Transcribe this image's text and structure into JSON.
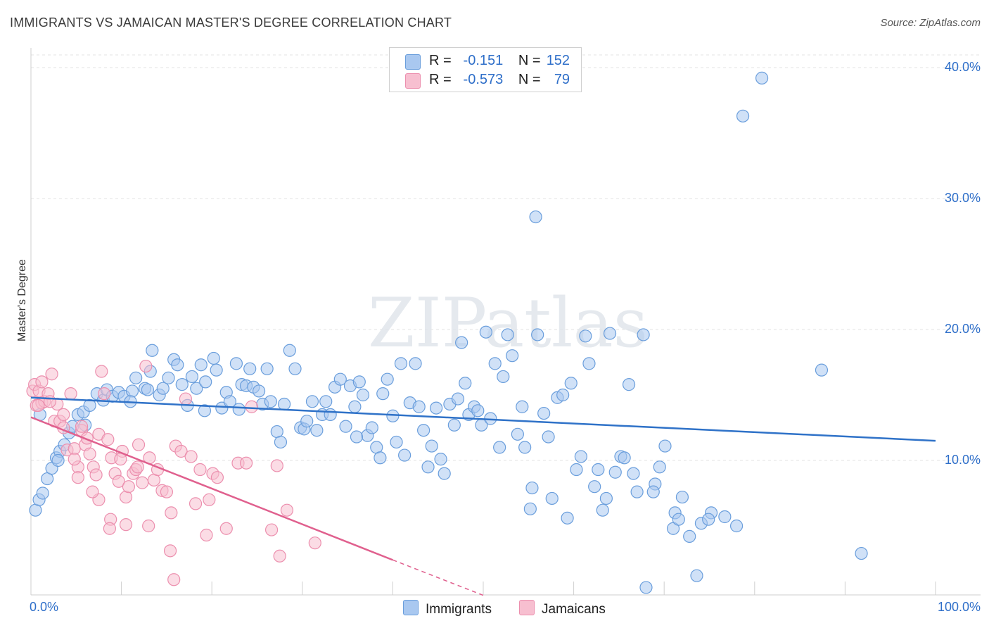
{
  "title": "IMMIGRANTS VS JAMAICAN MASTER'S DEGREE CORRELATION CHART",
  "source": "Source: ZipAtlas.com",
  "watermark": "ZIPatlas",
  "colors": {
    "immigrants_fill": "#a9c8f0",
    "immigrants_stroke": "#6a9edc",
    "immigrants_line": "#2f72c8",
    "jamaicans_fill": "#f7bfd0",
    "jamaicans_stroke": "#ec8fae",
    "jamaicans_line": "#e0608e",
    "accent_text": "#2f6fc9"
  },
  "legend": {
    "rows": [
      {
        "r_label": "R =",
        "r_value": "-0.151",
        "n_label": "N =",
        "n_value": "152"
      },
      {
        "r_label": "R =",
        "r_value": "-0.573",
        "n_label": "N =",
        "n_value": "79"
      }
    ]
  },
  "bottom_legend": {
    "immigrants": "Immigrants",
    "jamaicans": "Jamaicans"
  },
  "chart_data": {
    "type": "scatter",
    "title": "IMMIGRANTS VS JAMAICAN MASTER'S DEGREE CORRELATION CHART",
    "xlabel": "",
    "ylabel": "Master's Degree",
    "xlim": [
      0,
      100
    ],
    "ylim": [
      0,
      40
    ],
    "x_tick_labels": [
      "0.0%",
      "100.0%"
    ],
    "y_ticks": [
      10,
      20,
      30,
      40
    ],
    "y_tick_labels": [
      "10.0%",
      "20.0%",
      "30.0%",
      "40.0%"
    ],
    "grid": true,
    "legend_position": "top-center",
    "series": [
      {
        "name": "Immigrants",
        "r": -0.151,
        "n": 152,
        "trend": {
          "x": [
            0,
            100
          ],
          "y": [
            14.8,
            11.5
          ]
        },
        "points": [
          [
            0.5,
            6.2
          ],
          [
            0.9,
            7.0
          ],
          [
            1.3,
            7.5
          ],
          [
            1.8,
            8.6
          ],
          [
            2.3,
            9.4
          ],
          [
            2.8,
            10.2
          ],
          [
            3.2,
            10.7
          ],
          [
            3.7,
            11.2
          ],
          [
            4.2,
            12.1
          ],
          [
            4.6,
            12.6
          ],
          [
            5.2,
            13.5
          ],
          [
            5.8,
            13.7
          ],
          [
            6.5,
            14.2
          ],
          [
            7.3,
            15.1
          ],
          [
            8.0,
            14.6
          ],
          [
            8.4,
            15.4
          ],
          [
            9.0,
            14.9
          ],
          [
            9.7,
            15.2
          ],
          [
            10.3,
            14.9
          ],
          [
            11.2,
            15.3
          ],
          [
            11.6,
            16.3
          ],
          [
            12.6,
            15.5
          ],
          [
            13.2,
            16.8
          ],
          [
            12.9,
            15.4
          ],
          [
            13.4,
            18.4
          ],
          [
            14.2,
            15.0
          ],
          [
            14.6,
            15.5
          ],
          [
            15.2,
            16.3
          ],
          [
            15.8,
            17.7
          ],
          [
            16.2,
            17.3
          ],
          [
            16.7,
            15.8
          ],
          [
            17.3,
            14.2
          ],
          [
            17.8,
            16.4
          ],
          [
            18.3,
            15.5
          ],
          [
            18.8,
            17.3
          ],
          [
            19.3,
            16.0
          ],
          [
            19.2,
            13.8
          ],
          [
            20.2,
            17.8
          ],
          [
            20.5,
            16.9
          ],
          [
            21.1,
            14.0
          ],
          [
            21.6,
            15.2
          ],
          [
            22.0,
            14.5
          ],
          [
            22.7,
            17.4
          ],
          [
            23.3,
            15.8
          ],
          [
            23.8,
            15.7
          ],
          [
            24.2,
            17.0
          ],
          [
            24.6,
            15.6
          ],
          [
            25.2,
            15.3
          ],
          [
            25.6,
            14.3
          ],
          [
            26.1,
            17.0
          ],
          [
            26.5,
            14.5
          ],
          [
            27.2,
            12.2
          ],
          [
            27.6,
            11.4
          ],
          [
            28.0,
            14.3
          ],
          [
            28.6,
            18.4
          ],
          [
            29.2,
            17.0
          ],
          [
            29.8,
            12.5
          ],
          [
            30.2,
            12.4
          ],
          [
            30.5,
            13.0
          ],
          [
            31.1,
            14.5
          ],
          [
            31.6,
            12.3
          ],
          [
            32.2,
            13.5
          ],
          [
            32.6,
            14.5
          ],
          [
            33.1,
            13.5
          ],
          [
            33.6,
            15.6
          ],
          [
            34.2,
            16.2
          ],
          [
            34.8,
            12.6
          ],
          [
            35.3,
            15.7
          ],
          [
            35.8,
            14.1
          ],
          [
            36.3,
            16.0
          ],
          [
            36.7,
            15.0
          ],
          [
            37.2,
            11.9
          ],
          [
            37.7,
            12.5
          ],
          [
            38.2,
            11.0
          ],
          [
            38.6,
            10.2
          ],
          [
            38.9,
            15.1
          ],
          [
            39.4,
            16.2
          ],
          [
            40.0,
            13.4
          ],
          [
            40.4,
            11.4
          ],
          [
            40.9,
            17.4
          ],
          [
            41.3,
            10.4
          ],
          [
            41.9,
            14.4
          ],
          [
            42.5,
            17.4
          ],
          [
            42.9,
            14.1
          ],
          [
            43.4,
            12.3
          ],
          [
            43.9,
            9.5
          ],
          [
            44.3,
            11.1
          ],
          [
            44.8,
            14.0
          ],
          [
            45.3,
            10.1
          ],
          [
            45.7,
            9.0
          ],
          [
            46.3,
            14.3
          ],
          [
            46.8,
            12.7
          ],
          [
            47.2,
            14.7
          ],
          [
            47.6,
            19.0
          ],
          [
            48.0,
            15.9
          ],
          [
            48.4,
            13.5
          ],
          [
            49.0,
            14.1
          ],
          [
            49.4,
            13.8
          ],
          [
            49.8,
            12.7
          ],
          [
            50.3,
            19.8
          ],
          [
            50.8,
            13.2
          ],
          [
            51.3,
            17.4
          ],
          [
            51.8,
            11.0
          ],
          [
            52.2,
            16.4
          ],
          [
            52.7,
            19.6
          ],
          [
            53.2,
            18.0
          ],
          [
            53.8,
            12.0
          ],
          [
            54.3,
            14.1
          ],
          [
            54.6,
            11.0
          ],
          [
            55.2,
            6.3
          ],
          [
            55.4,
            7.9
          ],
          [
            56.0,
            19.6
          ],
          [
            56.7,
            13.6
          ],
          [
            57.2,
            11.8
          ],
          [
            57.6,
            7.1
          ],
          [
            58.2,
            14.8
          ],
          [
            58.8,
            15.0
          ],
          [
            59.3,
            5.6
          ],
          [
            59.7,
            15.9
          ],
          [
            60.3,
            9.3
          ],
          [
            60.8,
            10.3
          ],
          [
            61.3,
            19.5
          ],
          [
            61.7,
            17.4
          ],
          [
            62.3,
            8.0
          ],
          [
            62.7,
            9.3
          ],
          [
            63.2,
            6.2
          ],
          [
            63.6,
            7.1
          ],
          [
            64.0,
            19.7
          ],
          [
            64.6,
            9.1
          ],
          [
            65.2,
            10.3
          ],
          [
            65.6,
            10.2
          ],
          [
            66.1,
            15.8
          ],
          [
            66.6,
            9.0
          ],
          [
            67.0,
            7.6
          ],
          [
            67.7,
            19.6
          ],
          [
            68.0,
            0.3
          ],
          [
            69.0,
            8.2
          ],
          [
            68.8,
            7.6
          ],
          [
            70.1,
            11.1
          ],
          [
            71.0,
            4.8
          ],
          [
            71.2,
            6.0
          ],
          [
            71.6,
            5.5
          ],
          [
            72.0,
            7.2
          ],
          [
            72.8,
            4.2
          ],
          [
            73.6,
            1.2
          ],
          [
            74.1,
            5.2
          ],
          [
            75.2,
            6.0
          ],
          [
            74.9,
            5.5
          ],
          [
            76.7,
            5.7
          ],
          [
            78.7,
            36.3
          ],
          [
            80.8,
            39.2
          ],
          [
            55.8,
            28.6
          ],
          [
            87.4,
            16.9
          ],
          [
            91.8,
            2.9
          ],
          [
            78.0,
            5.0
          ],
          [
            69.5,
            9.5
          ],
          [
            36.0,
            11.8
          ],
          [
            23.0,
            13.9
          ],
          [
            11.0,
            14.5
          ],
          [
            3.0,
            10.0
          ],
          [
            6.0,
            12.7
          ],
          [
            1.0,
            13.5
          ]
        ]
      },
      {
        "name": "Jamaicans",
        "r": -0.573,
        "n": 79,
        "trend": {
          "x": [
            0,
            40,
            50
          ],
          "y": [
            13.3,
            2.4,
            -0.3
          ]
        },
        "points": [
          [
            0.2,
            15.3
          ],
          [
            0.4,
            15.8
          ],
          [
            0.6,
            14.2
          ],
          [
            0.9,
            15.3
          ],
          [
            1.2,
            14.4
          ],
          [
            1.5,
            14.5
          ],
          [
            1.9,
            15.1
          ],
          [
            2.3,
            16.6
          ],
          [
            2.6,
            13.0
          ],
          [
            2.9,
            14.3
          ],
          [
            3.2,
            13.0
          ],
          [
            3.6,
            12.5
          ],
          [
            4.0,
            10.8
          ],
          [
            4.4,
            15.1
          ],
          [
            4.8,
            10.9
          ],
          [
            5.2,
            9.5
          ],
          [
            5.6,
            12.3
          ],
          [
            6.0,
            11.2
          ],
          [
            6.5,
            10.5
          ],
          [
            6.9,
            9.5
          ],
          [
            7.2,
            8.9
          ],
          [
            7.5,
            12.0
          ],
          [
            7.8,
            16.8
          ],
          [
            8.1,
            15.1
          ],
          [
            8.5,
            11.6
          ],
          [
            8.9,
            10.2
          ],
          [
            9.3,
            9.0
          ],
          [
            9.7,
            8.4
          ],
          [
            10.1,
            10.7
          ],
          [
            10.5,
            7.2
          ],
          [
            10.8,
            8.0
          ],
          [
            11.3,
            9.0
          ],
          [
            11.6,
            9.3
          ],
          [
            11.9,
            11.2
          ],
          [
            12.3,
            8.3
          ],
          [
            12.7,
            17.2
          ],
          [
            13.1,
            10.2
          ],
          [
            13.6,
            8.5
          ],
          [
            14.0,
            9.3
          ],
          [
            14.5,
            7.7
          ],
          [
            15.0,
            7.6
          ],
          [
            15.5,
            6.0
          ],
          [
            16.0,
            11.1
          ],
          [
            16.6,
            10.7
          ],
          [
            17.1,
            14.7
          ],
          [
            17.7,
            10.3
          ],
          [
            18.2,
            6.7
          ],
          [
            18.7,
            9.3
          ],
          [
            19.4,
            4.3
          ],
          [
            19.7,
            7.0
          ],
          [
            20.1,
            9.0
          ],
          [
            20.6,
            8.7
          ],
          [
            21.6,
            4.8
          ],
          [
            22.9,
            9.8
          ],
          [
            23.8,
            9.8
          ],
          [
            24.4,
            14.1
          ],
          [
            26.6,
            4.7
          ],
          [
            27.2,
            9.6
          ],
          [
            27.5,
            2.7
          ],
          [
            28.3,
            6.2
          ],
          [
            31.4,
            3.7
          ],
          [
            15.4,
            3.1
          ],
          [
            15.8,
            0.9
          ],
          [
            13.0,
            5.0
          ],
          [
            8.8,
            5.5
          ],
          [
            8.7,
            4.8
          ],
          [
            10.5,
            5.1
          ],
          [
            7.5,
            7.0
          ],
          [
            6.8,
            7.6
          ],
          [
            5.2,
            8.7
          ],
          [
            0.8,
            14.2
          ],
          [
            1.2,
            16.0
          ],
          [
            2.1,
            14.5
          ],
          [
            3.6,
            13.5
          ],
          [
            5.6,
            12.6
          ],
          [
            9.9,
            10.1
          ],
          [
            11.8,
            9.5
          ],
          [
            4.8,
            10.1
          ],
          [
            6.2,
            11.7
          ]
        ]
      }
    ]
  }
}
